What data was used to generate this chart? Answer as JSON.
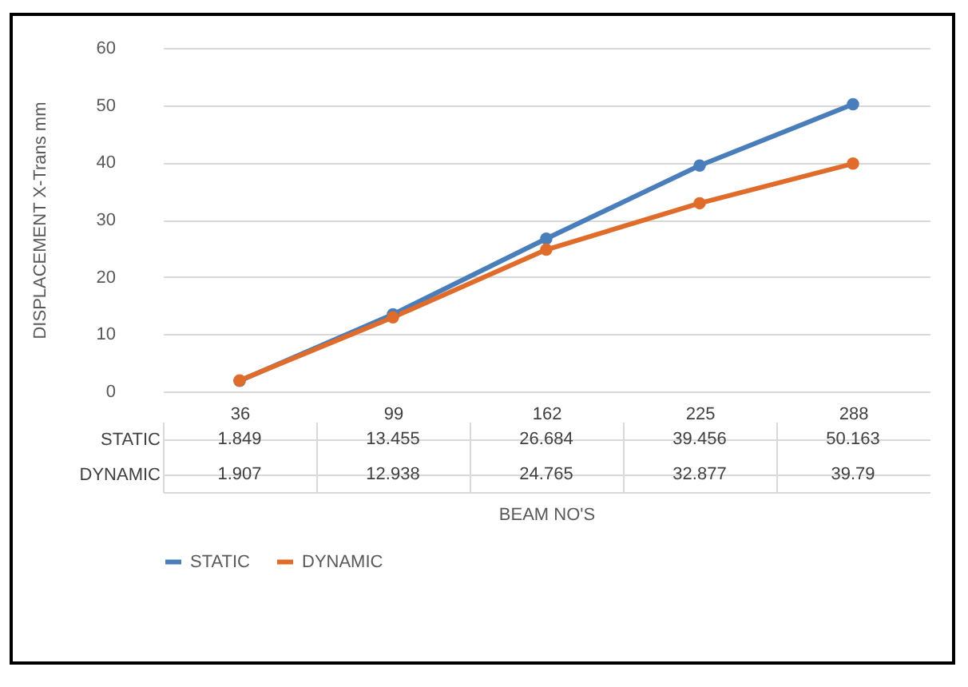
{
  "chart_data": {
    "type": "line",
    "xlabel": "BEAM NO'S",
    "ylabel": "DISPLACEMENT X-Trans mm",
    "categories": [
      "36",
      "99",
      "162",
      "225",
      "288"
    ],
    "series": [
      {
        "name": "STATIC",
        "color": "#4a7ebb",
        "values": [
          1.849,
          13.455,
          26.684,
          39.456,
          50.163
        ]
      },
      {
        "name": "DYNAMIC",
        "color": "#e06c2c",
        "values": [
          1.907,
          12.938,
          24.765,
          32.877,
          39.79
        ]
      }
    ],
    "ylim": [
      0,
      60
    ],
    "yticks": [
      0,
      10,
      20,
      30,
      40,
      50,
      60
    ],
    "grid": "y",
    "legend": "bottom",
    "marker": "circle",
    "line_style": "solid",
    "data_labels": true
  }
}
